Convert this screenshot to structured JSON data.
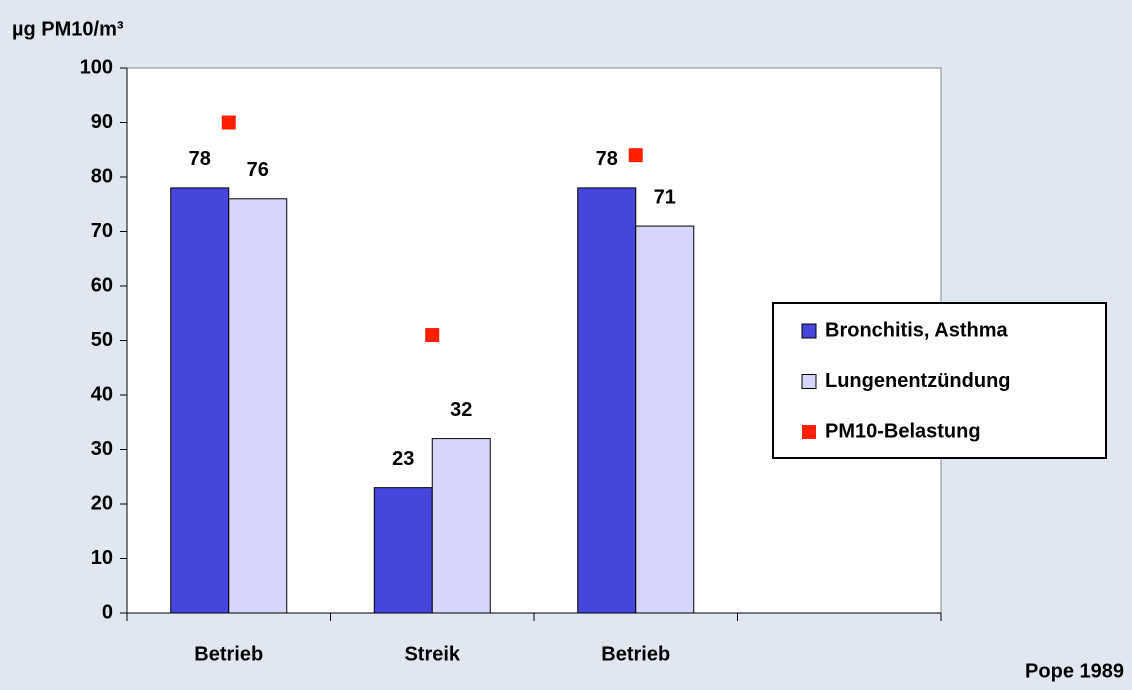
{
  "chart_data": {
    "type": "bar",
    "y_label": "µg PM10/m³",
    "source": "Pope 1989",
    "categories": [
      "Betrieb",
      "Streik",
      "Betrieb",
      null
    ],
    "series": [
      {
        "name": "Bronchitis, Asthma",
        "color": "#4646dc",
        "values": [
          78,
          23,
          78,
          null
        ]
      },
      {
        "name": "Lungenentzündung",
        "color": "#d6d6fc",
        "values": [
          76,
          32,
          71,
          null
        ]
      },
      {
        "name": "PM10-Belastung",
        "color": "#ff2000",
        "type": "scatter",
        "values": [
          90,
          51,
          84,
          null
        ]
      }
    ],
    "ylim": [
      0,
      100
    ],
    "yticks": [
      0,
      10,
      20,
      30,
      40,
      50,
      60,
      70,
      80,
      90,
      100
    ],
    "grid": false,
    "legend": "right"
  }
}
